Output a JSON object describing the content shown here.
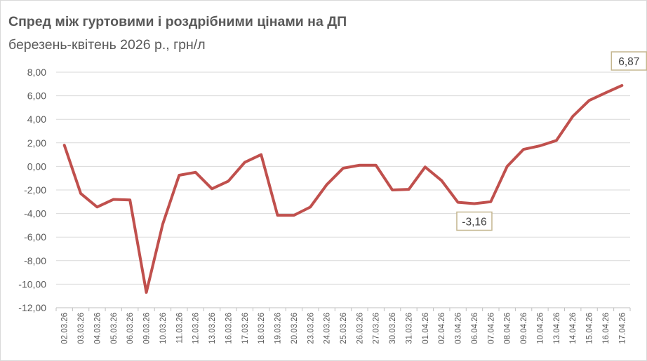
{
  "chart": {
    "title": "Спред між гуртовими і роздрібними цінами на ДП",
    "subtitle": "березень-квітень 2026 р., грн/л"
  },
  "colors": {
    "line": "#c0504d",
    "grid": "#d9d9d9",
    "axis": "#bfbfbf",
    "text": "#595959",
    "label_border": "#c4b690"
  },
  "chart_data": {
    "type": "line",
    "title": "Спред між гуртовими і роздрібними цінами на ДП",
    "subtitle": "березень-квітень 2026 р., грн/л",
    "xlabel": "",
    "ylabel": "",
    "ylim": [
      -12,
      8
    ],
    "yticks": [
      8,
      6,
      4,
      2,
      0,
      -2,
      -4,
      -6,
      -8,
      -10,
      -12
    ],
    "ytick_labels": [
      "8,00",
      "6,00",
      "4,00",
      "2,00",
      "0,00",
      "-2,00",
      "-4,00",
      "-6,00",
      "-8,00",
      "-10,00",
      "-12,00"
    ],
    "grid": true,
    "legend": "none",
    "categories": [
      "02.03.26",
      "03.03.26",
      "04.03.26",
      "05.03.26",
      "06.03.26",
      "09.03.26",
      "10.03.26",
      "11.03.26",
      "12.03.26",
      "13.03.26",
      "16.03.26",
      "17.03.26",
      "18.03.26",
      "19.03.26",
      "20.03.26",
      "23.03.26",
      "24.03.26",
      "25.03.26",
      "26.03.26",
      "27.03.26",
      "30.03.26",
      "31.03.26",
      "01.04.26",
      "02.04.26",
      "03.04.26",
      "06.04.26",
      "07.04.26",
      "08.04.26",
      "09.04.26",
      "10.04.26",
      "13.04.26",
      "14.04.26",
      "15.04.26",
      "16.04.26",
      "17.04.26"
    ],
    "values": [
      1.8,
      -2.3,
      -3.45,
      -2.8,
      -2.85,
      -10.7,
      -4.9,
      -0.75,
      -0.5,
      -1.9,
      -1.25,
      0.35,
      1.0,
      -4.15,
      -4.15,
      -3.45,
      -1.55,
      -0.15,
      0.1,
      0.1,
      -2.0,
      -1.95,
      -0.05,
      -1.2,
      -3.05,
      -3.16,
      -3.0,
      0.0,
      1.45,
      1.75,
      2.2,
      4.25,
      5.6,
      6.25,
      6.87
    ],
    "annotations": [
      {
        "index": 25,
        "text": "-3,16",
        "position": "below"
      },
      {
        "index": 34,
        "text": "6,87",
        "position": "above"
      }
    ]
  }
}
